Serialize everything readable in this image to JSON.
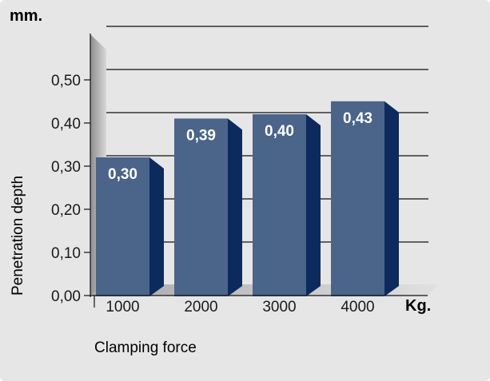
{
  "chart_data": {
    "type": "bar",
    "title": "",
    "y_unit": "mm.",
    "x_unit": "Kg.",
    "xlabel": "Clamping force",
    "ylabel": "Penetration depth",
    "categories": [
      "1000",
      "2000",
      "3000",
      "4000"
    ],
    "values": [
      0.3,
      0.39,
      0.4,
      0.43
    ],
    "value_labels": [
      "0,30",
      "0,39",
      "0,40",
      "0,43"
    ],
    "y_ticks": [
      {
        "value": 0.0,
        "label": "0,00"
      },
      {
        "value": 0.1,
        "label": "0,10"
      },
      {
        "value": 0.2,
        "label": "0,20"
      },
      {
        "value": 0.3,
        "label": "0,30"
      },
      {
        "value": 0.4,
        "label": "0,40"
      },
      {
        "value": 0.5,
        "label": "0,50"
      }
    ],
    "ylim": [
      0,
      0.5
    ],
    "grid": true,
    "legend": "none",
    "colors": {
      "background": "#e6e6e6",
      "bar_front": "#4a648a",
      "bar_side": "#0c2a5e",
      "wall": "#9a9a9a",
      "floor": "#bdbdbd",
      "text": "#1a1a1a",
      "value_text": "#ffffff"
    }
  }
}
